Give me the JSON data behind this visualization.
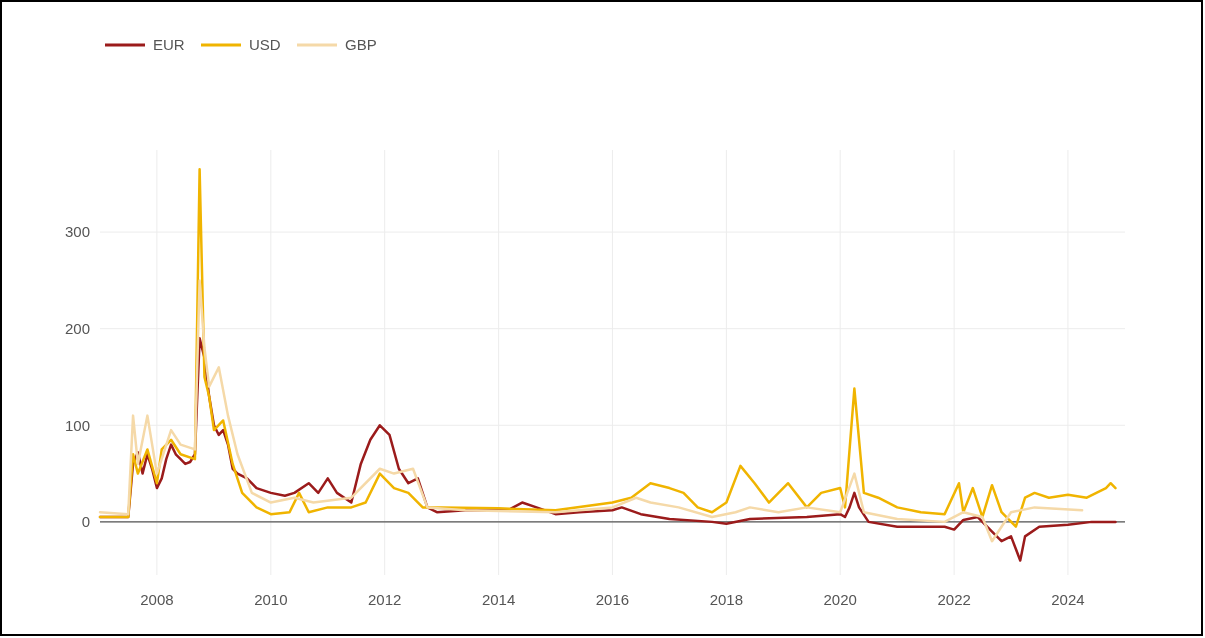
{
  "chart_data": {
    "type": "line",
    "xlim": [
      "2007",
      "2025"
    ],
    "xticks": [
      "2008",
      "2010",
      "2012",
      "2014",
      "2016",
      "2018",
      "2020",
      "2022",
      "2024"
    ],
    "ylim": [
      -55,
      385
    ],
    "yticks": [
      0,
      100,
      200,
      300
    ],
    "grid": true,
    "legend": "top left",
    "ref_lines": [
      {
        "axis": "y",
        "value": 0,
        "color": "#555555"
      }
    ],
    "series": [
      {
        "name": "EUR",
        "color": "#9b1b1b",
        "x": [
          "2007-01",
          "2007-07",
          "2007-08",
          "2007-09",
          "2007-10",
          "2007-11",
          "2007-12",
          "2008-01",
          "2008-02",
          "2008-03",
          "2008-04",
          "2008-05",
          "2008-06",
          "2008-07",
          "2008-08",
          "2008-09",
          "2008-10",
          "2008-11",
          "2008-12",
          "2009-01",
          "2009-02",
          "2009-03",
          "2009-04",
          "2009-05",
          "2009-06",
          "2009-08",
          "2009-10",
          "2010-01",
          "2010-04",
          "2010-06",
          "2010-09",
          "2010-11",
          "2011-01",
          "2011-03",
          "2011-06",
          "2011-08",
          "2011-10",
          "2011-12",
          "2012-02",
          "2012-04",
          "2012-06",
          "2012-08",
          "2012-10",
          "2012-12",
          "2013-06",
          "2014-03",
          "2014-06",
          "2014-09",
          "2015-01",
          "2015-06",
          "2016-01",
          "2016-03",
          "2016-07",
          "2017-01",
          "2017-10",
          "2018-01",
          "2018-06",
          "2019-06",
          "2020-01",
          "2020-02",
          "2020-03",
          "2020-04",
          "2020-05",
          "2020-07",
          "2021-01",
          "2021-06",
          "2021-11",
          "2022-01",
          "2022-03",
          "2022-06",
          "2022-09",
          "2022-11",
          "2023-01",
          "2023-03",
          "2023-04",
          "2023-07",
          "2024-01",
          "2024-06",
          "2024-11"
        ],
        "values": [
          5,
          5,
          60,
          72,
          50,
          70,
          55,
          35,
          45,
          65,
          80,
          70,
          65,
          60,
          62,
          70,
          190,
          170,
          130,
          100,
          90,
          95,
          80,
          55,
          50,
          45,
          35,
          30,
          27,
          30,
          40,
          30,
          45,
          30,
          20,
          60,
          85,
          100,
          90,
          55,
          40,
          45,
          15,
          10,
          12,
          12,
          20,
          15,
          8,
          10,
          12,
          15,
          8,
          3,
          0,
          -2,
          3,
          5,
          8,
          5,
          15,
          30,
          15,
          0,
          -5,
          -5,
          -5,
          -8,
          2,
          5,
          -10,
          -20,
          -15,
          -40,
          -15,
          -5,
          -3,
          0,
          0
        ]
      },
      {
        "name": "USD",
        "color": "#f0b400",
        "x": [
          "2007-01",
          "2007-07",
          "2007-08",
          "2007-09",
          "2007-11",
          "2008-01",
          "2008-02",
          "2008-04",
          "2008-06",
          "2008-09",
          "2008-10",
          "2008-11",
          "2008-12",
          "2009-01",
          "2009-03",
          "2009-05",
          "2009-07",
          "2009-10",
          "2010-01",
          "2010-05",
          "2010-07",
          "2010-09",
          "2011-01",
          "2011-06",
          "2011-09",
          "2011-12",
          "2012-03",
          "2012-06",
          "2012-09",
          "2013-01",
          "2014-01",
          "2015-01",
          "2016-01",
          "2016-05",
          "2016-09",
          "2017-01",
          "2017-04",
          "2017-07",
          "2017-10",
          "2018-01",
          "2018-04",
          "2018-07",
          "2018-10",
          "2019-02",
          "2019-06",
          "2019-09",
          "2020-01",
          "2020-02",
          "2020-04",
          "2020-06",
          "2020-09",
          "2021-01",
          "2021-06",
          "2021-11",
          "2022-02",
          "2022-03",
          "2022-05",
          "2022-07",
          "2022-09",
          "2022-11",
          "2023-02",
          "2023-04",
          "2023-06",
          "2023-09",
          "2024-01",
          "2024-05",
          "2024-09",
          "2024-10",
          "2024-11"
        ],
        "values": [
          5,
          5,
          70,
          50,
          75,
          40,
          75,
          85,
          70,
          65,
          365,
          150,
          130,
          95,
          105,
          60,
          30,
          15,
          8,
          10,
          30,
          10,
          15,
          15,
          20,
          50,
          35,
          30,
          15,
          15,
          14,
          12,
          20,
          25,
          40,
          35,
          30,
          15,
          10,
          20,
          58,
          40,
          20,
          40,
          15,
          30,
          35,
          15,
          138,
          30,
          25,
          15,
          10,
          8,
          40,
          10,
          35,
          5,
          38,
          10,
          -5,
          25,
          30,
          25,
          28,
          25,
          35,
          40,
          35
        ]
      },
      {
        "name": "GBP",
        "color": "#f5d9a8",
        "x": [
          "2007-01",
          "2007-07",
          "2007-08",
          "2007-09",
          "2007-11",
          "2008-01",
          "2008-04",
          "2008-06",
          "2008-09",
          "2008-10",
          "2008-11",
          "2008-12",
          "2009-02",
          "2009-04",
          "2009-06",
          "2009-09",
          "2010-01",
          "2010-06",
          "2010-10",
          "2011-06",
          "2011-12",
          "2012-03",
          "2012-07",
          "2012-10",
          "2013-06",
          "2015-01",
          "2016-01",
          "2016-06",
          "2016-09",
          "2017-03",
          "2017-10",
          "2018-03",
          "2018-06",
          "2018-12",
          "2019-06",
          "2020-01",
          "2020-04",
          "2020-06",
          "2021-01",
          "2021-11",
          "2022-03",
          "2022-07",
          "2022-09",
          "2023-01",
          "2023-06",
          "2024-04"
        ],
        "values": [
          10,
          8,
          110,
          60,
          110,
          50,
          95,
          80,
          75,
          250,
          180,
          140,
          160,
          110,
          70,
          30,
          20,
          25,
          20,
          25,
          55,
          50,
          55,
          15,
          12,
          10,
          15,
          25,
          20,
          15,
          5,
          10,
          15,
          10,
          15,
          10,
          50,
          10,
          3,
          0,
          10,
          5,
          -20,
          10,
          15,
          12
        ]
      }
    ]
  }
}
